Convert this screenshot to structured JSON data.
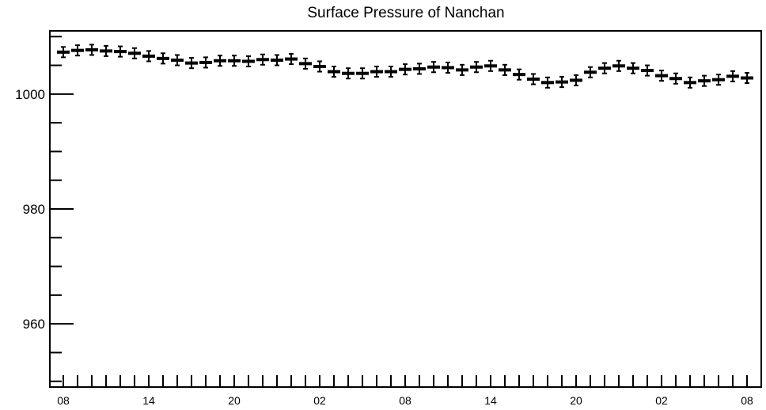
{
  "chart_data": {
    "type": "scatter",
    "title": "Surface Pressure of Nanchan",
    "xlabel": "",
    "ylabel": "",
    "ylim": [
      949,
      1011
    ],
    "y_ticks": [
      960,
      980,
      1000
    ],
    "x_tick_labels": [
      "08",
      "14",
      "20",
      "02",
      "08",
      "14",
      "20",
      "02",
      "08"
    ],
    "grid": false,
    "series": [
      {
        "error": 0.9,
        "values": [
          1007.3,
          1007.6,
          1007.7,
          1007.5,
          1007.4,
          1007.1,
          1006.6,
          1006.2,
          1005.9,
          1005.4,
          1005.5,
          1005.8,
          1005.8,
          1005.7,
          1006.0,
          1005.9,
          1006.1,
          1005.3,
          1004.8,
          1003.9,
          1003.6,
          1003.6,
          1003.9,
          1003.9,
          1004.3,
          1004.4,
          1004.7,
          1004.6,
          1004.2,
          1004.7,
          1004.9,
          1004.2,
          1003.4,
          1002.6,
          1002.0,
          1002.1,
          1002.4,
          1003.8,
          1004.5,
          1004.9,
          1004.5,
          1004.1,
          1003.2,
          1002.7,
          1002.0,
          1002.3,
          1002.5,
          1003.1,
          1002.8
        ]
      }
    ]
  }
}
